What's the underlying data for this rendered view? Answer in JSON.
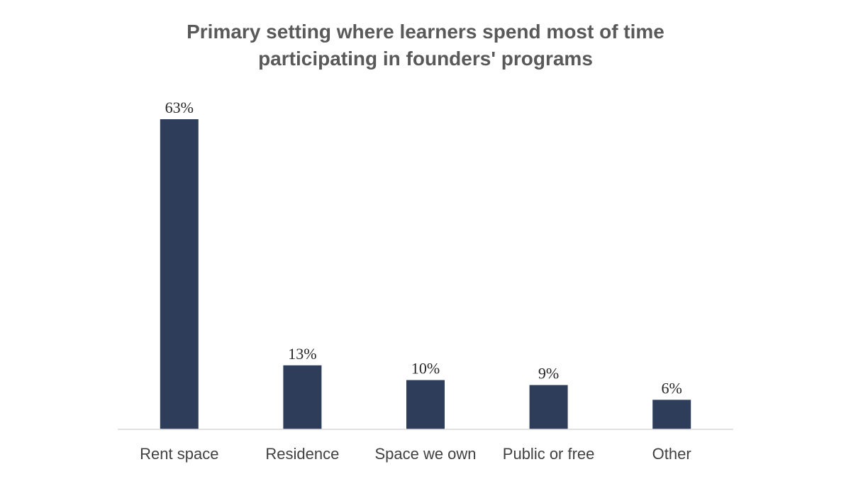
{
  "chart_data": {
    "type": "bar",
    "title_lines": [
      "Primary setting where learners spend most of time",
      "participating in founders' programs"
    ],
    "categories": [
      "Rent space",
      "Residence",
      "Space we own",
      "Public or free",
      "Other"
    ],
    "values": [
      63,
      13,
      10,
      9,
      6
    ],
    "value_labels": [
      "63%",
      "13%",
      "10%",
      "9%",
      "6%"
    ],
    "xlabel": "",
    "ylabel": "",
    "ylim": [
      0,
      65
    ],
    "grid": false,
    "legend": "none",
    "colors": {
      "bar": "#2e3d5a",
      "axis": "#d9d9d9",
      "title": "#595959"
    }
  }
}
